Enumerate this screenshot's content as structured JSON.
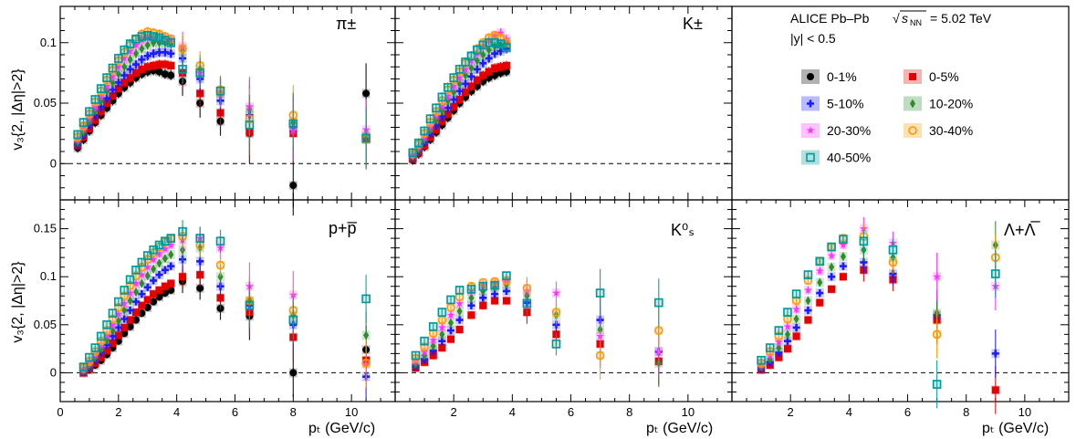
{
  "figure": {
    "header_line1": "ALICE Pb–Pb",
    "energy": "= 5.02 TeV",
    "header_line2": "|y| < 0.5",
    "ylabel": "v₃{2, |Δη|>2}",
    "xlabel": "pₜ (GeV/c)"
  },
  "legend": [
    {
      "label": "0-1%",
      "color": "#000000",
      "marker": "circle"
    },
    {
      "label": "0-5%",
      "color": "#e60000",
      "marker": "square"
    },
    {
      "label": "5-10%",
      "color": "#1a1aff",
      "marker": "cross"
    },
    {
      "label": "10-20%",
      "color": "#2e8b2e",
      "marker": "diamond"
    },
    {
      "label": "20-30%",
      "color": "#ff33ff",
      "marker": "star"
    },
    {
      "label": "30-40%",
      "color": "#ff9900",
      "marker": "open-circle"
    },
    {
      "label": "40-50%",
      "color": "#009999",
      "marker": "open-square"
    }
  ],
  "chart_data": [
    {
      "type": "scatter",
      "title": "π±",
      "xlim": [
        0,
        11.5
      ],
      "ylim": [
        -0.03,
        0.13
      ],
      "xticks": [],
      "yticks": [
        "0",
        "0.05",
        "0.1"
      ],
      "x": [
        0.6,
        0.8,
        1.0,
        1.2,
        1.4,
        1.6,
        1.8,
        2.0,
        2.2,
        2.4,
        2.6,
        2.8,
        3.0,
        3.2,
        3.4,
        3.6,
        3.8,
        4.2,
        4.8,
        5.5,
        6.5,
        8.0,
        10.5
      ],
      "series": [
        {
          "name": "0-1%",
          "values": [
            0.013,
            0.02,
            0.027,
            0.034,
            0.04,
            0.046,
            0.052,
            0.058,
            0.063,
            0.067,
            0.071,
            0.074,
            0.076,
            0.077,
            0.076,
            0.074,
            0.073,
            0.068,
            0.05,
            0.035,
            0.025,
            -0.018,
            0.058
          ]
        },
        {
          "name": "0-5%",
          "values": [
            0.015,
            0.022,
            0.029,
            0.036,
            0.043,
            0.05,
            0.056,
            0.062,
            0.067,
            0.071,
            0.075,
            0.078,
            0.08,
            0.081,
            0.082,
            0.082,
            0.081,
            0.075,
            0.058,
            0.042,
            0.026,
            0.025,
            0.02
          ]
        },
        {
          "name": "5-10%",
          "values": [
            0.016,
            0.024,
            0.032,
            0.04,
            0.047,
            0.054,
            0.061,
            0.067,
            0.073,
            0.078,
            0.082,
            0.086,
            0.089,
            0.091,
            0.092,
            0.092,
            0.091,
            0.087,
            0.07,
            0.052,
            0.04,
            0.03,
            0.022
          ]
        },
        {
          "name": "10-20%",
          "values": [
            0.018,
            0.026,
            0.035,
            0.044,
            0.052,
            0.06,
            0.067,
            0.074,
            0.08,
            0.086,
            0.091,
            0.095,
            0.098,
            0.1,
            0.1,
            0.1,
            0.099,
            0.093,
            0.078,
            0.058,
            0.045,
            0.034,
            0.023
          ]
        },
        {
          "name": "20-30%",
          "values": [
            0.02,
            0.029,
            0.038,
            0.047,
            0.056,
            0.064,
            0.072,
            0.08,
            0.087,
            0.093,
            0.098,
            0.102,
            0.104,
            0.105,
            0.105,
            0.104,
            0.103,
            0.097,
            0.075,
            0.058,
            0.047,
            0.027,
            0.028
          ]
        },
        {
          "name": "30-40%",
          "values": [
            0.022,
            0.031,
            0.041,
            0.051,
            0.06,
            0.069,
            0.077,
            0.085,
            0.092,
            0.098,
            0.103,
            0.107,
            0.109,
            0.108,
            0.107,
            0.105,
            0.103,
            0.095,
            0.081,
            0.061,
            0.037,
            0.04,
            0.02
          ]
        },
        {
          "name": "40-50%",
          "values": [
            0.024,
            0.034,
            0.043,
            0.053,
            0.062,
            0.071,
            0.079,
            0.087,
            0.094,
            0.099,
            0.103,
            0.105,
            0.106,
            0.105,
            0.104,
            0.102,
            0.1,
            0.078,
            0.075,
            0.06,
            0.032,
            0.033,
            0.021
          ]
        }
      ]
    },
    {
      "type": "scatter",
      "title": "K±",
      "xlim": [
        0,
        11.5
      ],
      "ylim": [
        -0.03,
        0.13
      ],
      "xticks": [],
      "yticks": [],
      "x": [
        0.6,
        0.8,
        1.0,
        1.2,
        1.4,
        1.6,
        1.8,
        2.0,
        2.2,
        2.4,
        2.6,
        2.8,
        3.0,
        3.2,
        3.4,
        3.6,
        3.8
      ],
      "series": [
        {
          "name": "0-1%",
          "values": [
            0.003,
            0.008,
            0.014,
            0.02,
            0.026,
            0.032,
            0.038,
            0.044,
            0.05,
            0.055,
            0.06,
            0.064,
            0.068,
            0.071,
            0.073,
            0.075,
            0.076
          ]
        },
        {
          "name": "0-5%",
          "values": [
            0.004,
            0.009,
            0.015,
            0.022,
            0.028,
            0.035,
            0.041,
            0.047,
            0.053,
            0.059,
            0.064,
            0.069,
            0.073,
            0.076,
            0.079,
            0.08,
            0.081
          ]
        },
        {
          "name": "5-10%",
          "values": [
            0.005,
            0.011,
            0.018,
            0.025,
            0.032,
            0.039,
            0.046,
            0.053,
            0.06,
            0.066,
            0.072,
            0.078,
            0.083,
            0.087,
            0.091,
            0.093,
            0.095
          ]
        },
        {
          "name": "10-20%",
          "values": [
            0.006,
            0.012,
            0.02,
            0.028,
            0.036,
            0.044,
            0.052,
            0.059,
            0.066,
            0.073,
            0.079,
            0.085,
            0.09,
            0.094,
            0.097,
            0.099,
            0.1
          ]
        },
        {
          "name": "20-30%",
          "values": [
            0.007,
            0.014,
            0.022,
            0.031,
            0.04,
            0.048,
            0.056,
            0.064,
            0.071,
            0.078,
            0.085,
            0.091,
            0.097,
            0.102,
            0.106,
            0.108,
            0.103
          ]
        },
        {
          "name": "30-40%",
          "values": [
            0.008,
            0.016,
            0.025,
            0.034,
            0.043,
            0.052,
            0.061,
            0.069,
            0.076,
            0.083,
            0.089,
            0.095,
            0.1,
            0.104,
            0.106,
            0.104,
            0.1
          ]
        },
        {
          "name": "40-50%",
          "values": [
            0.009,
            0.017,
            0.027,
            0.037,
            0.046,
            0.055,
            0.063,
            0.071,
            0.078,
            0.084,
            0.089,
            0.094,
            0.098,
            0.1,
            0.1,
            0.099,
            0.096
          ]
        }
      ]
    },
    {
      "type": "scatter",
      "title": "p+p̅",
      "xlim": [
        0,
        11.5
      ],
      "ylim": [
        -0.03,
        0.18
      ],
      "xticks": [
        "0",
        "2",
        "4",
        "6",
        "8",
        "10"
      ],
      "yticks": [
        "0",
        "0.05",
        "0.1",
        "0.15"
      ],
      "x": [
        0.8,
        1.0,
        1.2,
        1.4,
        1.6,
        1.8,
        2.0,
        2.2,
        2.4,
        2.6,
        2.8,
        3.0,
        3.2,
        3.4,
        3.6,
        3.8,
        4.2,
        4.8,
        5.5,
        6.5,
        8.0,
        10.5
      ],
      "series": [
        {
          "name": "0-1%",
          "values": [
            0.0,
            0.003,
            0.008,
            0.013,
            0.019,
            0.026,
            0.033,
            0.041,
            0.048,
            0.055,
            0.062,
            0.068,
            0.074,
            0.079,
            0.083,
            0.086,
            0.095,
            0.088,
            0.067,
            0.059,
            0.0,
            0.024
          ]
        },
        {
          "name": "0-5%",
          "values": [
            0.0,
            0.004,
            0.01,
            0.016,
            0.023,
            0.031,
            0.039,
            0.047,
            0.055,
            0.063,
            0.07,
            0.076,
            0.082,
            0.086,
            0.09,
            0.093,
            0.1,
            0.102,
            0.078,
            0.063,
            0.037,
            0.013
          ]
        },
        {
          "name": "5-10%",
          "values": [
            0.001,
            0.006,
            0.013,
            0.021,
            0.029,
            0.038,
            0.047,
            0.056,
            0.065,
            0.074,
            0.082,
            0.089,
            0.096,
            0.102,
            0.107,
            0.111,
            0.118,
            0.116,
            0.09,
            0.07,
            0.05,
            -0.004
          ]
        },
        {
          "name": "10-20%",
          "values": [
            0.002,
            0.008,
            0.016,
            0.025,
            0.034,
            0.044,
            0.054,
            0.065,
            0.075,
            0.084,
            0.093,
            0.101,
            0.108,
            0.114,
            0.119,
            0.123,
            0.128,
            0.13,
            0.1,
            0.075,
            0.06,
            0.039
          ]
        },
        {
          "name": "20-30%",
          "values": [
            0.003,
            0.01,
            0.019,
            0.029,
            0.039,
            0.05,
            0.061,
            0.072,
            0.083,
            0.093,
            0.102,
            0.11,
            0.118,
            0.124,
            0.129,
            0.133,
            0.138,
            0.14,
            0.13,
            0.09,
            0.081,
            0.009
          ]
        },
        {
          "name": "30-40%",
          "values": [
            0.005,
            0.012,
            0.022,
            0.033,
            0.044,
            0.056,
            0.068,
            0.08,
            0.091,
            0.101,
            0.11,
            0.118,
            0.125,
            0.131,
            0.136,
            0.14,
            0.142,
            0.133,
            0.112,
            0.075,
            0.065,
            0.01
          ]
        },
        {
          "name": "40-50%",
          "values": [
            0.006,
            0.016,
            0.026,
            0.038,
            0.05,
            0.062,
            0.074,
            0.086,
            0.097,
            0.107,
            0.115,
            0.122,
            0.128,
            0.133,
            0.137,
            0.14,
            0.147,
            0.14,
            0.137,
            0.07,
            0.055,
            0.077
          ]
        }
      ]
    },
    {
      "type": "scatter",
      "title": "K⁰ₛ",
      "xlim": [
        0,
        11.5
      ],
      "ylim": [
        -0.03,
        0.18
      ],
      "xticks": [
        "2",
        "4",
        "6",
        "8",
        "10"
      ],
      "yticks": [],
      "x": [
        0.7,
        1.0,
        1.3,
        1.6,
        1.9,
        2.2,
        2.6,
        3.0,
        3.4,
        3.8,
        4.5,
        5.5,
        7.0,
        9.0
      ],
      "series": [
        {
          "name": "0-5%",
          "values": [
            0.005,
            0.011,
            0.018,
            0.026,
            0.035,
            0.045,
            0.06,
            0.07,
            0.075,
            0.075,
            0.063,
            0.04,
            0.03,
            0.012
          ]
        },
        {
          "name": "5-10%",
          "values": [
            0.007,
            0.014,
            0.023,
            0.033,
            0.044,
            0.055,
            0.07,
            0.078,
            0.082,
            0.085,
            0.073,
            0.05,
            0.055,
            0.022
          ]
        },
        {
          "name": "10-20%",
          "values": [
            0.009,
            0.018,
            0.028,
            0.04,
            0.052,
            0.064,
            0.078,
            0.085,
            0.089,
            0.092,
            0.08,
            0.06,
            0.045,
            0.01
          ]
        },
        {
          "name": "20-30%",
          "values": [
            0.012,
            0.022,
            0.034,
            0.047,
            0.06,
            0.072,
            0.085,
            0.091,
            0.093,
            0.095,
            0.085,
            0.083,
            0.038,
            0.022
          ]
        },
        {
          "name": "30-40%",
          "values": [
            0.015,
            0.027,
            0.041,
            0.055,
            0.068,
            0.079,
            0.09,
            0.094,
            0.095,
            0.096,
            0.088,
            0.063,
            0.018,
            0.044
          ]
        },
        {
          "name": "40-50%",
          "values": [
            0.018,
            0.033,
            0.048,
            0.063,
            0.076,
            0.086,
            0.087,
            0.09,
            0.091,
            0.101,
            0.072,
            0.03,
            0.083,
            0.073
          ]
        }
      ]
    },
    {
      "type": "scatter",
      "title": "Λ+Λ̅",
      "xlim": [
        0,
        11.5
      ],
      "ylim": [
        -0.03,
        0.18
      ],
      "xticks": [
        "2",
        "4",
        "6",
        "8",
        "10"
      ],
      "yticks": [],
      "x": [
        1.0,
        1.3,
        1.6,
        1.9,
        2.2,
        2.6,
        3.0,
        3.4,
        3.8,
        4.5,
        5.5,
        7.0,
        9.0
      ],
      "series": [
        {
          "name": "0-5%",
          "values": [
            0.003,
            0.008,
            0.016,
            0.025,
            0.038,
            0.055,
            0.073,
            0.087,
            0.1,
            0.107,
            0.097,
            0.055,
            -0.018
          ]
        },
        {
          "name": "5-10%",
          "values": [
            0.004,
            0.011,
            0.021,
            0.033,
            0.047,
            0.065,
            0.083,
            0.1,
            0.111,
            0.115,
            0.103,
            0.06,
            0.02
          ]
        },
        {
          "name": "10-20%",
          "values": [
            0.006,
            0.014,
            0.026,
            0.04,
            0.056,
            0.075,
            0.094,
            0.11,
            0.121,
            0.128,
            0.12,
            0.062,
            0.133
          ]
        },
        {
          "name": "20-30%",
          "values": [
            0.008,
            0.018,
            0.032,
            0.048,
            0.066,
            0.086,
            0.106,
            0.122,
            0.133,
            0.15,
            0.135,
            0.1,
            0.09
          ]
        },
        {
          "name": "30-40%",
          "values": [
            0.01,
            0.022,
            0.038,
            0.056,
            0.075,
            0.096,
            0.116,
            0.131,
            0.14,
            0.142,
            0.115,
            0.04,
            0.12
          ]
        },
        {
          "name": "40-50%",
          "values": [
            0.013,
            0.026,
            0.044,
            0.063,
            0.082,
            0.102,
            0.116,
            0.131,
            0.139,
            0.137,
            0.128,
            -0.012,
            0.103
          ]
        }
      ]
    }
  ]
}
